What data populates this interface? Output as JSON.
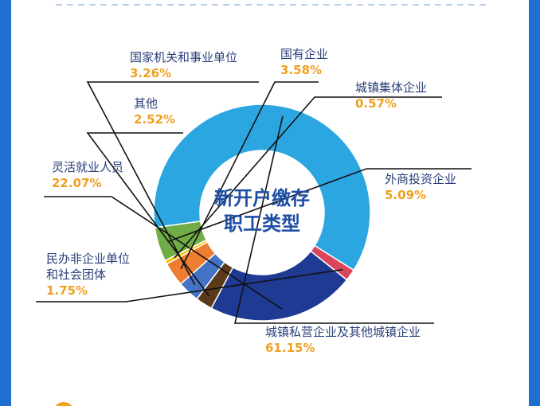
{
  "chart_data": {
    "type": "pie",
    "title": "新开户缴存职工类型",
    "title_lines": [
      "新开户缴存",
      "职工类型"
    ],
    "unit": "%",
    "slices": [
      {
        "label": "国家机关和事业单位",
        "value": 3.26,
        "value_text": "3.26%",
        "color": "#4472c4"
      },
      {
        "label": "国有企业",
        "value": 3.58,
        "value_text": "3.58%",
        "color": "#ed7d31"
      },
      {
        "label": "城镇集体企业",
        "value": 0.57,
        "value_text": "0.57%",
        "color": "#ffc000"
      },
      {
        "label": "外商投资企业",
        "value": 5.09,
        "value_text": "5.09%",
        "color": "#70ad47"
      },
      {
        "label": "城镇私营企业及其他城镇企业",
        "value": 61.15,
        "value_text": "61.15%",
        "color": "#2ca6e0"
      },
      {
        "label": "民办非企业单位和社会团体",
        "label_lines": [
          "民办非企业单位",
          "和社会团体"
        ],
        "value": 1.75,
        "value_text": "1.75%",
        "color": "#d9475c"
      },
      {
        "label": "灵活就业人员",
        "value": 22.07,
        "value_text": "22.07%",
        "color": "#1f3a93"
      },
      {
        "label": "其他",
        "value": 2.52,
        "value_text": "2.52%",
        "color": "#5a3a1a"
      }
    ]
  },
  "colors": {
    "background_frame": "#1e6fd0",
    "card": "#ffffff",
    "label_text": "#2a3f7a",
    "percent_text": "#f0a020",
    "center_text": "#1f4ea3"
  }
}
